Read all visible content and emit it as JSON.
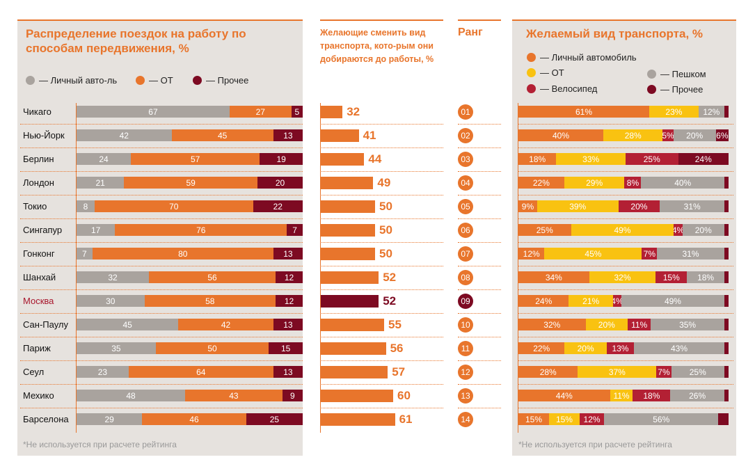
{
  "titles": {
    "left": "Распределение поездок на работу по способам передвижения, %",
    "mid": "Желающие сменить вид транспорта, кото-рым они добираются до работы, %",
    "rank": "Ранг",
    "right": "Желаемый вид транспорта, %"
  },
  "left_legend": [
    "— Личный авто-ль",
    "— ОТ",
    "— Прочее"
  ],
  "right_legend": [
    "— Личный автомобиль",
    "— ОТ",
    "— Пешком",
    "— Велосипед",
    "— Прочее"
  ],
  "colors": {
    "gray": "#a9a39e",
    "orange": "#e8752c",
    "maroon": "#7d0a22",
    "yellow": "#f9c211",
    "crimson": "#b32034",
    "highlight": "#a8162c"
  },
  "note": "*Не используется при расчете рейтинга",
  "highlight_city": "Москва",
  "chart_data": [
    {
      "type": "bar",
      "stacked": true,
      "title": "Распределение поездок на работу по способам передвижения, %",
      "categories": [
        "Чикаго",
        "Нью-Йорк",
        "Берлин",
        "Лондон",
        "Токио",
        "Сингапур",
        "Гонконг",
        "Шанхай",
        "Москва",
        "Сан-Паулу",
        "Париж",
        "Сеул",
        "Мехико",
        "Барселона"
      ],
      "series": [
        {
          "name": "Личный авто-ль",
          "values": [
            67,
            42,
            24,
            21,
            8,
            17,
            7,
            32,
            30,
            45,
            35,
            23,
            48,
            29
          ]
        },
        {
          "name": "ОТ",
          "values": [
            27,
            45,
            57,
            59,
            70,
            76,
            80,
            56,
            58,
            42,
            50,
            64,
            43,
            46
          ]
        },
        {
          "name": "Прочее",
          "values": [
            5,
            13,
            19,
            20,
            22,
            7,
            13,
            12,
            12,
            13,
            15,
            13,
            9,
            25
          ]
        }
      ]
    },
    {
      "type": "bar",
      "title": "Желающие сменить вид транспорта, кото-рым они добираются до работы, %",
      "categories": [
        "Чикаго",
        "Нью-Йорк",
        "Берлин",
        "Лондон",
        "Токио",
        "Сингапур",
        "Гонконг",
        "Шанхай",
        "Москва",
        "Сан-Паулу",
        "Париж",
        "Сеул",
        "Мехико",
        "Барселона"
      ],
      "values": [
        32,
        41,
        44,
        49,
        50,
        50,
        50,
        52,
        52,
        55,
        56,
        57,
        60,
        61
      ],
      "ranks": [
        "01",
        "02",
        "03",
        "04",
        "05",
        "06",
        "07",
        "08",
        "09",
        "10",
        "11",
        "12",
        "13",
        "14"
      ]
    },
    {
      "type": "bar",
      "stacked": true,
      "title": "Желаемый вид транспорта, %",
      "categories": [
        "Чикаго",
        "Нью-Йорк",
        "Берлин",
        "Лондон",
        "Токио",
        "Сингапур",
        "Гонконг",
        "Шанхай",
        "Москва",
        "Сан-Паулу",
        "Париж",
        "Сеул",
        "Мехико",
        "Барселона"
      ],
      "series": [
        {
          "name": "Личный автомобиль",
          "values": [
            61,
            40,
            18,
            22,
            9,
            25,
            12,
            34,
            24,
            32,
            22,
            28,
            44,
            15
          ]
        },
        {
          "name": "ОТ",
          "values": [
            23,
            28,
            33,
            29,
            39,
            49,
            45,
            32,
            21,
            20,
            20,
            37,
            11,
            15
          ]
        },
        {
          "name": "Велосипед",
          "values": [
            0,
            5,
            25,
            8,
            20,
            4,
            7,
            15,
            4,
            11,
            13,
            7,
            18,
            12
          ]
        },
        {
          "name": "Пешком",
          "values": [
            12,
            20,
            0,
            40,
            31,
            20,
            31,
            18,
            49,
            35,
            43,
            25,
            26,
            56
          ]
        },
        {
          "name": "Прочее",
          "values": [
            2,
            6,
            24,
            2,
            2,
            2,
            2,
            2,
            2,
            2,
            2,
            2,
            2,
            5
          ]
        }
      ],
      "labels": [
        [
          "61%",
          "23%",
          "",
          "12%",
          ""
        ],
        [
          "40%",
          "28%",
          "5%",
          "20%",
          "6%"
        ],
        [
          "18%",
          "33%",
          "25%",
          "",
          "24%"
        ],
        [
          "22%",
          "29%",
          "8%",
          "40%",
          ""
        ],
        [
          "9%",
          "39%",
          "20%",
          "31%",
          ""
        ],
        [
          "25%",
          "49%",
          "4%",
          "20%",
          ""
        ],
        [
          "12%",
          "45%",
          "7%",
          "31%",
          ""
        ],
        [
          "34%",
          "32%",
          "15%",
          "18%",
          ""
        ],
        [
          "24%",
          "21%",
          "4%",
          "49%",
          ""
        ],
        [
          "32%",
          "20%",
          "11%",
          "35%",
          ""
        ],
        [
          "22%",
          "20%",
          "13%",
          "43%",
          ""
        ],
        [
          "28%",
          "37%",
          "7%",
          "25%",
          ""
        ],
        [
          "44%",
          "11%",
          "18%",
          "26%",
          ""
        ],
        [
          "15%",
          "15%",
          "12%",
          "56%",
          ""
        ]
      ]
    }
  ]
}
